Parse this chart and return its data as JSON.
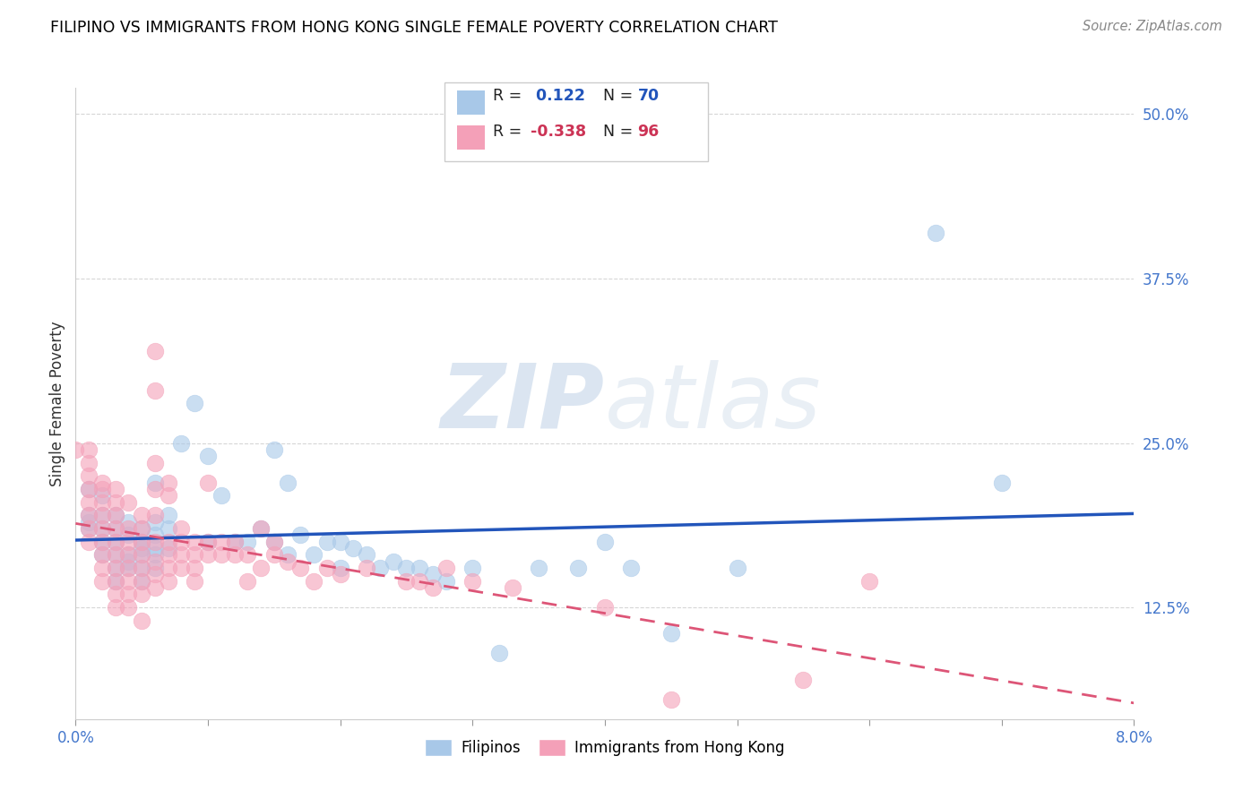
{
  "title": "FILIPINO VS IMMIGRANTS FROM HONG KONG SINGLE FEMALE POVERTY CORRELATION CHART",
  "source": "Source: ZipAtlas.com",
  "ylabel": "Single Female Poverty",
  "yticks_labels": [
    "12.5%",
    "25.0%",
    "37.5%",
    "50.0%"
  ],
  "ytick_vals": [
    0.125,
    0.25,
    0.375,
    0.5
  ],
  "xmin": 0.0,
  "xmax": 0.08,
  "ymin": 0.04,
  "ymax": 0.52,
  "watermark_zip": "ZIP",
  "watermark_atlas": "atlas",
  "color_blue": "#a8c8e8",
  "color_pink": "#f4a0b8",
  "line_blue": "#2255bb",
  "line_pink": "#dd5577",
  "legend_blue_r": "0.122",
  "legend_blue_n": "70",
  "legend_pink_r": "-0.338",
  "legend_pink_n": "96",
  "filipinos": [
    [
      0.001,
      0.215
    ],
    [
      0.001,
      0.195
    ],
    [
      0.001,
      0.19
    ],
    [
      0.001,
      0.185
    ],
    [
      0.002,
      0.21
    ],
    [
      0.002,
      0.195
    ],
    [
      0.002,
      0.185
    ],
    [
      0.002,
      0.175
    ],
    [
      0.002,
      0.165
    ],
    [
      0.003,
      0.195
    ],
    [
      0.003,
      0.185
    ],
    [
      0.003,
      0.175
    ],
    [
      0.003,
      0.165
    ],
    [
      0.003,
      0.155
    ],
    [
      0.003,
      0.145
    ],
    [
      0.004,
      0.19
    ],
    [
      0.004,
      0.18
    ],
    [
      0.004,
      0.165
    ],
    [
      0.004,
      0.16
    ],
    [
      0.004,
      0.155
    ],
    [
      0.005,
      0.185
    ],
    [
      0.005,
      0.175
    ],
    [
      0.005,
      0.17
    ],
    [
      0.005,
      0.165
    ],
    [
      0.005,
      0.155
    ],
    [
      0.005,
      0.145
    ],
    [
      0.006,
      0.22
    ],
    [
      0.006,
      0.19
    ],
    [
      0.006,
      0.18
    ],
    [
      0.006,
      0.17
    ],
    [
      0.006,
      0.165
    ],
    [
      0.006,
      0.155
    ],
    [
      0.007,
      0.195
    ],
    [
      0.007,
      0.185
    ],
    [
      0.007,
      0.17
    ],
    [
      0.008,
      0.25
    ],
    [
      0.009,
      0.28
    ],
    [
      0.01,
      0.24
    ],
    [
      0.01,
      0.175
    ],
    [
      0.011,
      0.21
    ],
    [
      0.012,
      0.175
    ],
    [
      0.013,
      0.175
    ],
    [
      0.014,
      0.185
    ],
    [
      0.015,
      0.245
    ],
    [
      0.015,
      0.175
    ],
    [
      0.016,
      0.22
    ],
    [
      0.016,
      0.165
    ],
    [
      0.017,
      0.18
    ],
    [
      0.018,
      0.165
    ],
    [
      0.019,
      0.175
    ],
    [
      0.02,
      0.175
    ],
    [
      0.02,
      0.155
    ],
    [
      0.021,
      0.17
    ],
    [
      0.022,
      0.165
    ],
    [
      0.023,
      0.155
    ],
    [
      0.024,
      0.16
    ],
    [
      0.025,
      0.155
    ],
    [
      0.026,
      0.155
    ],
    [
      0.027,
      0.15
    ],
    [
      0.028,
      0.145
    ],
    [
      0.03,
      0.155
    ],
    [
      0.032,
      0.09
    ],
    [
      0.035,
      0.155
    ],
    [
      0.038,
      0.155
    ],
    [
      0.04,
      0.175
    ],
    [
      0.042,
      0.155
    ],
    [
      0.045,
      0.105
    ],
    [
      0.05,
      0.155
    ],
    [
      0.065,
      0.41
    ],
    [
      0.07,
      0.22
    ]
  ],
  "hk_immigrants": [
    [
      0.0,
      0.245
    ],
    [
      0.001,
      0.245
    ],
    [
      0.001,
      0.235
    ],
    [
      0.001,
      0.225
    ],
    [
      0.001,
      0.215
    ],
    [
      0.001,
      0.205
    ],
    [
      0.001,
      0.195
    ],
    [
      0.001,
      0.185
    ],
    [
      0.001,
      0.175
    ],
    [
      0.002,
      0.22
    ],
    [
      0.002,
      0.215
    ],
    [
      0.002,
      0.205
    ],
    [
      0.002,
      0.195
    ],
    [
      0.002,
      0.185
    ],
    [
      0.002,
      0.175
    ],
    [
      0.002,
      0.165
    ],
    [
      0.002,
      0.155
    ],
    [
      0.002,
      0.145
    ],
    [
      0.003,
      0.215
    ],
    [
      0.003,
      0.205
    ],
    [
      0.003,
      0.195
    ],
    [
      0.003,
      0.185
    ],
    [
      0.003,
      0.175
    ],
    [
      0.003,
      0.165
    ],
    [
      0.003,
      0.155
    ],
    [
      0.003,
      0.145
    ],
    [
      0.003,
      0.135
    ],
    [
      0.003,
      0.125
    ],
    [
      0.004,
      0.205
    ],
    [
      0.004,
      0.185
    ],
    [
      0.004,
      0.175
    ],
    [
      0.004,
      0.165
    ],
    [
      0.004,
      0.155
    ],
    [
      0.004,
      0.145
    ],
    [
      0.004,
      0.135
    ],
    [
      0.004,
      0.125
    ],
    [
      0.005,
      0.195
    ],
    [
      0.005,
      0.185
    ],
    [
      0.005,
      0.175
    ],
    [
      0.005,
      0.165
    ],
    [
      0.005,
      0.155
    ],
    [
      0.005,
      0.145
    ],
    [
      0.005,
      0.135
    ],
    [
      0.005,
      0.115
    ],
    [
      0.006,
      0.32
    ],
    [
      0.006,
      0.29
    ],
    [
      0.006,
      0.235
    ],
    [
      0.006,
      0.215
    ],
    [
      0.006,
      0.195
    ],
    [
      0.006,
      0.175
    ],
    [
      0.006,
      0.16
    ],
    [
      0.006,
      0.15
    ],
    [
      0.006,
      0.14
    ],
    [
      0.007,
      0.22
    ],
    [
      0.007,
      0.21
    ],
    [
      0.007,
      0.175
    ],
    [
      0.007,
      0.165
    ],
    [
      0.007,
      0.155
    ],
    [
      0.007,
      0.145
    ],
    [
      0.008,
      0.185
    ],
    [
      0.008,
      0.175
    ],
    [
      0.008,
      0.165
    ],
    [
      0.008,
      0.155
    ],
    [
      0.009,
      0.175
    ],
    [
      0.009,
      0.165
    ],
    [
      0.009,
      0.155
    ],
    [
      0.009,
      0.145
    ],
    [
      0.01,
      0.22
    ],
    [
      0.01,
      0.175
    ],
    [
      0.01,
      0.165
    ],
    [
      0.011,
      0.175
    ],
    [
      0.011,
      0.165
    ],
    [
      0.012,
      0.175
    ],
    [
      0.012,
      0.165
    ],
    [
      0.013,
      0.165
    ],
    [
      0.013,
      0.145
    ],
    [
      0.014,
      0.185
    ],
    [
      0.014,
      0.155
    ],
    [
      0.015,
      0.175
    ],
    [
      0.015,
      0.165
    ],
    [
      0.016,
      0.16
    ],
    [
      0.017,
      0.155
    ],
    [
      0.018,
      0.145
    ],
    [
      0.019,
      0.155
    ],
    [
      0.02,
      0.15
    ],
    [
      0.022,
      0.155
    ],
    [
      0.025,
      0.145
    ],
    [
      0.026,
      0.145
    ],
    [
      0.027,
      0.14
    ],
    [
      0.028,
      0.155
    ],
    [
      0.03,
      0.145
    ],
    [
      0.033,
      0.14
    ],
    [
      0.04,
      0.125
    ],
    [
      0.045,
      0.055
    ],
    [
      0.055,
      0.07
    ],
    [
      0.06,
      0.145
    ]
  ]
}
